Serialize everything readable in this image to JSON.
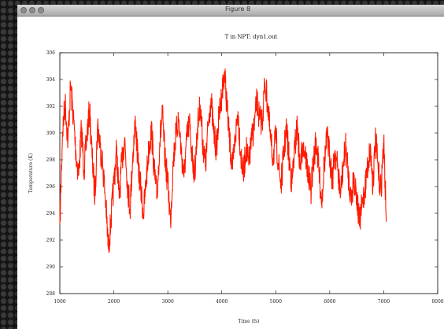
{
  "window": {
    "title": "Figure 8"
  },
  "chart_data": {
    "type": "line",
    "title": "T in NPT: dyn1.out",
    "xlabel": "Time (fs)",
    "ylabel": "Temperature (K)",
    "xlim": [
      1000,
      8000
    ],
    "ylim": [
      288,
      306
    ],
    "xticks": [
      1000,
      2000,
      3000,
      4000,
      5000,
      6000,
      7000,
      8000
    ],
    "xtick_labels": [
      "1000",
      "2000",
      "3000",
      "4000",
      "5000",
      "6000",
      "7000",
      "8000"
    ],
    "yticks": [
      288,
      290,
      292,
      294,
      296,
      298,
      300,
      302,
      304,
      306
    ],
    "ytick_labels": [
      "288",
      "290",
      "292",
      "294",
      "296",
      "298",
      "300",
      "302",
      "304",
      "306"
    ],
    "grid": false,
    "series": [
      {
        "color": "#ff1a00",
        "x": [
          1000,
          1050,
          1100,
          1150,
          1200,
          1250,
          1300,
          1350,
          1400,
          1450,
          1500,
          1550,
          1600,
          1650,
          1700,
          1750,
          1800,
          1850,
          1900,
          1950,
          2000,
          2050,
          2100,
          2150,
          2200,
          2250,
          2300,
          2350,
          2400,
          2450,
          2500,
          2550,
          2600,
          2650,
          2700,
          2750,
          2800,
          2850,
          2900,
          2950,
          3000,
          3050,
          3100,
          3150,
          3200,
          3250,
          3300,
          3350,
          3400,
          3450,
          3500,
          3550,
          3600,
          3650,
          3700,
          3750,
          3800,
          3850,
          3900,
          3950,
          4000,
          4050,
          4100,
          4150,
          4200,
          4250,
          4300,
          4350,
          4400,
          4450,
          4500,
          4550,
          4600,
          4650,
          4700,
          4750,
          4800,
          4850,
          4900,
          4950,
          5000,
          5050,
          5100,
          5150,
          5200,
          5250,
          5300,
          5350,
          5400,
          5450,
          5500,
          5550,
          5600,
          5650,
          5700,
          5750,
          5800,
          5850,
          5900,
          5950,
          6000,
          6050,
          6100,
          6150,
          6200,
          6250,
          6300,
          6350,
          6400,
          6450,
          6500,
          6550,
          6600,
          6650,
          6700,
          6750,
          6800,
          6850,
          6900,
          6950,
          7000,
          7050
        ],
        "y": [
          293.2,
          300.1,
          302.3,
          299.4,
          303.6,
          301.2,
          298.4,
          296.9,
          300.3,
          297.2,
          299.8,
          301.7,
          298.1,
          295.3,
          300.6,
          299.0,
          297.4,
          294.8,
          291.3,
          293.6,
          296.2,
          298.7,
          295.1,
          297.9,
          299.6,
          296.4,
          294.3,
          298.2,
          300.9,
          297.6,
          295.8,
          293.9,
          296.5,
          298.9,
          300.2,
          297.1,
          295.2,
          299.3,
          301.4,
          298.0,
          296.3,
          293.4,
          297.8,
          299.9,
          301.1,
          298.6,
          296.7,
          299.5,
          300.8,
          298.3,
          297.0,
          300.4,
          302.1,
          299.2,
          297.5,
          300.7,
          302.6,
          300.0,
          298.8,
          301.3,
          302.9,
          304.6,
          301.8,
          299.1,
          297.3,
          299.7,
          301.6,
          298.5,
          296.8,
          298.9,
          297.6,
          299.4,
          300.5,
          302.4,
          301.0,
          300.9,
          303.8,
          302.2,
          299.6,
          298.1,
          299.8,
          297.7,
          296.1,
          298.6,
          300.3,
          297.9,
          296.2,
          298.8,
          300.6,
          297.3,
          299.2,
          298.4,
          296.9,
          295.6,
          298.0,
          299.5,
          297.1,
          294.9,
          297.8,
          299.7,
          298.3,
          296.5,
          298.7,
          297.2,
          295.4,
          297.6,
          299.1,
          296.6,
          295.0,
          296.8,
          295.3,
          293.1,
          294.7,
          295.8,
          297.4,
          298.9,
          296.2,
          299.6,
          297.0,
          295.8,
          299.3,
          293.4
        ]
      }
    ]
  }
}
